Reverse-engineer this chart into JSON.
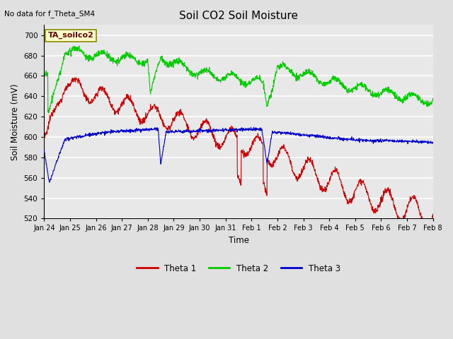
{
  "title": "Soil CO2 Soil Moisture",
  "top_left_text": "No data for f_Theta_SM4",
  "annotation_text": "TA_soilco2",
  "xlabel": "Time",
  "ylabel": "Soil Moisture (mV)",
  "ylim": [
    520,
    710
  ],
  "yticks": [
    520,
    540,
    560,
    580,
    600,
    620,
    640,
    660,
    680,
    700
  ],
  "background_color": "#e0e0e0",
  "plot_bg_color": "#e8e8e8",
  "grid_color": "#ffffff",
  "legend_entries": [
    "Theta 1",
    "Theta 2",
    "Theta 3"
  ],
  "line_colors": [
    "#cc0000",
    "#00cc00",
    "#0000cc"
  ],
  "xtick_labels": [
    "Jan 24",
    "Jan 25",
    "Jan 26",
    "Jan 27",
    "Jan 28",
    "Jan 29",
    "Jan 30",
    "Jan 31",
    "Feb 1",
    "Feb 2",
    "Feb 3",
    "Feb 4",
    "Feb 5",
    "Feb 6",
    "Feb 7",
    "Feb 8"
  ]
}
